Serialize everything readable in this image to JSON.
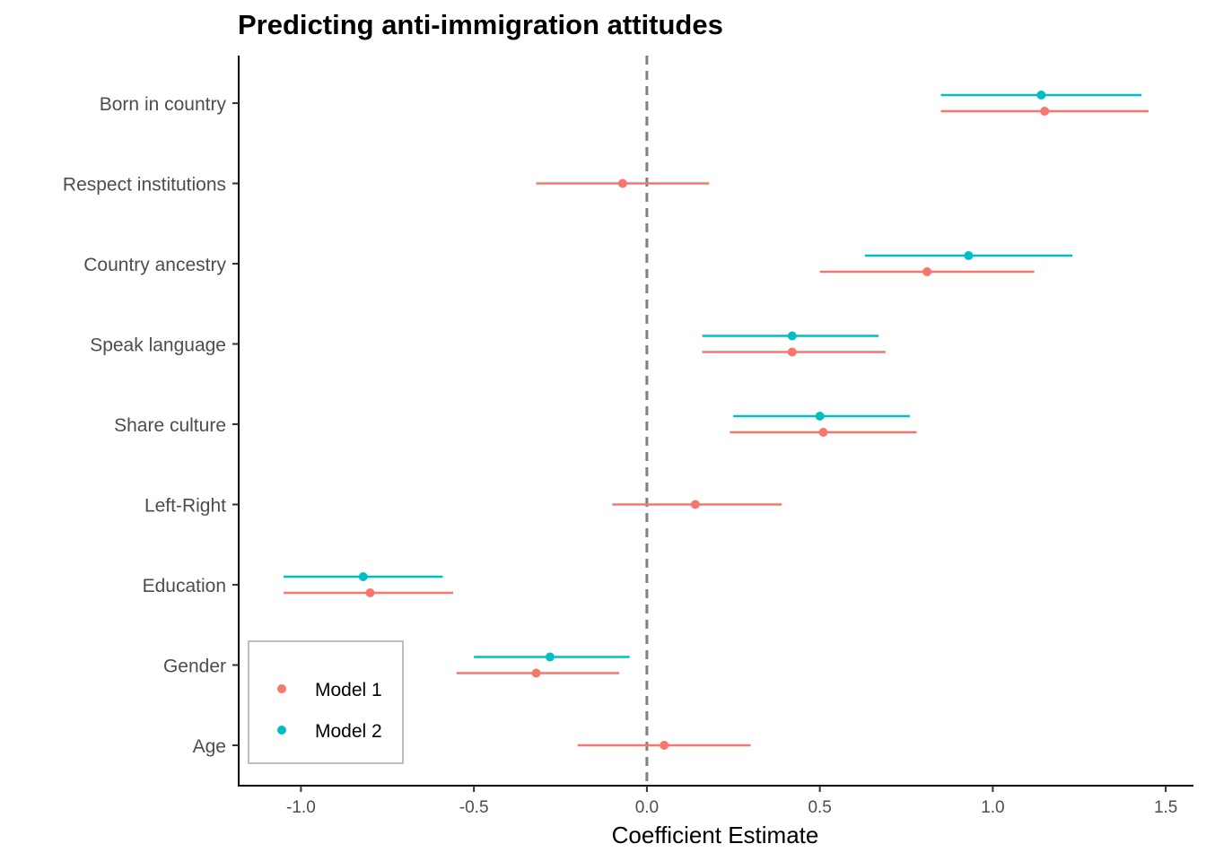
{
  "chart_data": {
    "type": "scatter",
    "title": "Predicting anti-immigration attitudes",
    "xlabel": "Coefficient Estimate",
    "ylabel": "",
    "xlim": [
      -1.18,
      1.58
    ],
    "xticks": [
      -1.0,
      -0.5,
      0.0,
      0.5,
      1.0,
      1.5
    ],
    "xtick_labels": [
      "-1.0",
      "-0.5",
      "0.0",
      "0.5",
      "1.0",
      "1.5"
    ],
    "categories": [
      "Born in country",
      "Respect institutions",
      "Country ancestry",
      "Speak language",
      "Share culture",
      "Left-Right",
      "Education",
      "Gender",
      "Age"
    ],
    "reference_line": 0,
    "grid": false,
    "legend_position": "bottom-left",
    "series": [
      {
        "name": "Model 1",
        "color": "#F8766D",
        "points": [
          {
            "category": "Born in country",
            "estimate": 1.15,
            "low": 0.85,
            "high": 1.45
          },
          {
            "category": "Respect institutions",
            "estimate": -0.07,
            "low": -0.32,
            "high": 0.18
          },
          {
            "category": "Country ancestry",
            "estimate": 0.81,
            "low": 0.5,
            "high": 1.12
          },
          {
            "category": "Speak language",
            "estimate": 0.42,
            "low": 0.16,
            "high": 0.69
          },
          {
            "category": "Share culture",
            "estimate": 0.51,
            "low": 0.24,
            "high": 0.78
          },
          {
            "category": "Left-Right",
            "estimate": 0.14,
            "low": -0.1,
            "high": 0.39
          },
          {
            "category": "Education",
            "estimate": -0.8,
            "low": -1.05,
            "high": -0.56
          },
          {
            "category": "Gender",
            "estimate": -0.32,
            "low": -0.55,
            "high": -0.08
          },
          {
            "category": "Age",
            "estimate": 0.05,
            "low": -0.2,
            "high": 0.3
          }
        ]
      },
      {
        "name": "Model 2",
        "color": "#00BFC4",
        "points": [
          {
            "category": "Born in country",
            "estimate": 1.14,
            "low": 0.85,
            "high": 1.43
          },
          {
            "category": "Country ancestry",
            "estimate": 0.93,
            "low": 0.63,
            "high": 1.23
          },
          {
            "category": "Speak language",
            "estimate": 0.42,
            "low": 0.16,
            "high": 0.67
          },
          {
            "category": "Share culture",
            "estimate": 0.5,
            "low": 0.25,
            "high": 0.76
          },
          {
            "category": "Education",
            "estimate": -0.82,
            "low": -1.05,
            "high": -0.59
          },
          {
            "category": "Gender",
            "estimate": -0.28,
            "low": -0.5,
            "high": -0.05
          }
        ]
      }
    ]
  }
}
